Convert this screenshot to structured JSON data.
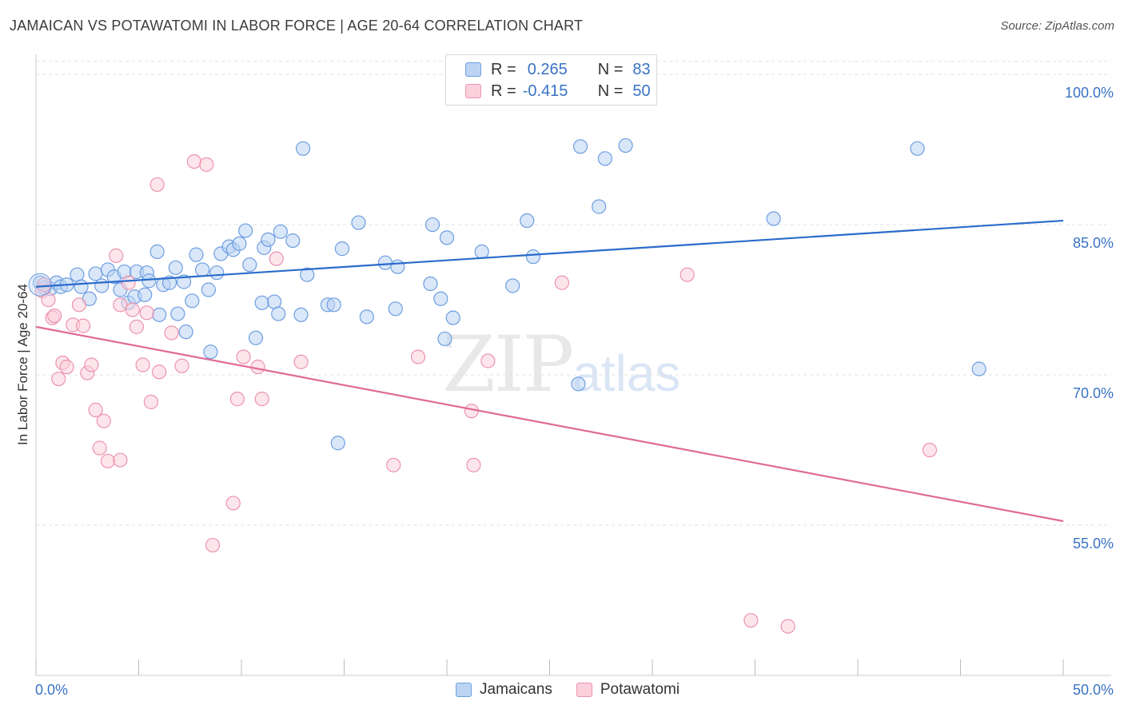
{
  "title": "JAMAICAN VS POTAWATOMI IN LABOR FORCE | AGE 20-64 CORRELATION CHART",
  "source": "Source: ZipAtlas.com",
  "watermark": {
    "zip": "ZIP",
    "atlas": "atlas"
  },
  "legend": {
    "rows": [
      {
        "r_label": "R =",
        "r_value": "0.265",
        "n_label": "N =",
        "n_value": "83"
      },
      {
        "r_label": "R =",
        "r_value": "-0.415",
        "n_label": "N =",
        "n_value": "50"
      }
    ]
  },
  "bottom_legend": {
    "series_a": "Jamaicans",
    "series_b": "Potawatomi"
  },
  "colors": {
    "blue_fill": "#bcd4f4",
    "blue_stroke": "#6d9ee0",
    "blue_line": "#2a6ccb",
    "pink_fill": "#fbd0dc",
    "pink_stroke": "#ec93ae",
    "pink_line": "#e06a96",
    "tick_label": "#3a72c4",
    "grid": "#e2e2e2"
  },
  "chart_data": {
    "type": "scatter",
    "title": "JAMAICAN VS POTAWATOMI IN LABOR FORCE | AGE 20-64 CORRELATION CHART",
    "ylabel": "In Labor Force | Age 20-64",
    "xlim": [
      0,
      50
    ],
    "ylim": [
      40,
      102
    ],
    "x_tick_labels": [
      "0.0%",
      "50.0%"
    ],
    "y_ticks": [
      55,
      70,
      85,
      100
    ],
    "y_tick_labels": [
      "55.0%",
      "70.0%",
      "85.0%",
      "100.0%"
    ],
    "series": [
      {
        "name": "Jamaicans",
        "trend": [
          [
            0,
            78.8
          ],
          [
            50,
            85.4
          ]
        ],
        "points": [
          [
            0.2,
            79.2
          ],
          [
            0.4,
            78.7
          ],
          [
            0.7,
            78.6
          ],
          [
            1.0,
            79.2
          ],
          [
            1.2,
            78.8
          ],
          [
            1.5,
            79.0
          ],
          [
            2.0,
            80.0
          ],
          [
            2.2,
            78.8
          ],
          [
            2.6,
            77.6
          ],
          [
            2.9,
            80.1
          ],
          [
            3.2,
            78.9
          ],
          [
            3.5,
            80.5
          ],
          [
            3.8,
            79.8
          ],
          [
            4.1,
            78.5
          ],
          [
            4.3,
            80.3
          ],
          [
            4.5,
            77.2
          ],
          [
            4.8,
            77.8
          ],
          [
            4.9,
            80.3
          ],
          [
            5.3,
            78.0
          ],
          [
            5.4,
            80.2
          ],
          [
            5.5,
            79.4
          ],
          [
            5.9,
            82.3
          ],
          [
            6.0,
            76.0
          ],
          [
            6.2,
            79.0
          ],
          [
            6.5,
            79.2
          ],
          [
            6.8,
            80.7
          ],
          [
            6.9,
            76.1
          ],
          [
            7.2,
            79.3
          ],
          [
            7.3,
            74.3
          ],
          [
            7.6,
            77.4
          ],
          [
            7.8,
            82.0
          ],
          [
            8.1,
            80.5
          ],
          [
            8.4,
            78.5
          ],
          [
            8.5,
            72.3
          ],
          [
            8.8,
            80.2
          ],
          [
            9.0,
            82.1
          ],
          [
            9.4,
            82.8
          ],
          [
            9.6,
            82.5
          ],
          [
            9.9,
            83.1
          ],
          [
            10.2,
            84.4
          ],
          [
            10.4,
            81.0
          ],
          [
            10.7,
            73.7
          ],
          [
            11.0,
            77.2
          ],
          [
            11.1,
            82.7
          ],
          [
            11.3,
            83.5
          ],
          [
            11.6,
            77.3
          ],
          [
            11.8,
            76.1
          ],
          [
            11.9,
            84.3
          ],
          [
            12.5,
            83.4
          ],
          [
            12.9,
            76.0
          ],
          [
            13.0,
            92.6
          ],
          [
            13.2,
            80.0
          ],
          [
            14.2,
            77.0
          ],
          [
            14.5,
            77.0
          ],
          [
            14.7,
            63.2
          ],
          [
            14.9,
            82.6
          ],
          [
            15.7,
            85.2
          ],
          [
            16.1,
            75.8
          ],
          [
            17.0,
            81.2
          ],
          [
            17.5,
            76.6
          ],
          [
            17.6,
            80.8
          ],
          [
            19.2,
            79.1
          ],
          [
            19.3,
            85.0
          ],
          [
            19.7,
            77.6
          ],
          [
            19.9,
            73.6
          ],
          [
            20.0,
            83.7
          ],
          [
            20.3,
            75.7
          ],
          [
            21.7,
            82.3
          ],
          [
            23.2,
            78.9
          ],
          [
            23.9,
            85.4
          ],
          [
            24.2,
            81.8
          ],
          [
            26.4,
            69.1
          ],
          [
            26.5,
            92.8
          ],
          [
            27.4,
            86.8
          ],
          [
            27.7,
            91.6
          ],
          [
            28.7,
            92.9
          ],
          [
            35.9,
            85.6
          ],
          [
            42.9,
            92.6
          ],
          [
            45.9,
            70.6
          ]
        ]
      },
      {
        "name": "Potawatomi",
        "trend": [
          [
            0,
            74.8
          ],
          [
            50,
            55.4
          ]
        ],
        "points": [
          [
            0.3,
            78.4
          ],
          [
            0.4,
            79.0
          ],
          [
            0.6,
            77.5
          ],
          [
            0.8,
            75.7
          ],
          [
            0.9,
            75.9
          ],
          [
            1.1,
            69.6
          ],
          [
            1.3,
            71.2
          ],
          [
            1.5,
            70.8
          ],
          [
            1.8,
            75.0
          ],
          [
            2.1,
            77.0
          ],
          [
            2.3,
            74.9
          ],
          [
            2.5,
            70.2
          ],
          [
            2.7,
            71.0
          ],
          [
            2.9,
            66.5
          ],
          [
            3.1,
            62.7
          ],
          [
            3.3,
            65.4
          ],
          [
            3.5,
            61.4
          ],
          [
            3.9,
            81.9
          ],
          [
            4.1,
            77.0
          ],
          [
            4.1,
            61.5
          ],
          [
            4.5,
            79.2
          ],
          [
            4.7,
            76.5
          ],
          [
            4.9,
            74.8
          ],
          [
            5.2,
            71.0
          ],
          [
            5.4,
            76.2
          ],
          [
            5.6,
            67.3
          ],
          [
            5.9,
            89.0
          ],
          [
            6.0,
            70.3
          ],
          [
            6.6,
            74.2
          ],
          [
            7.1,
            70.9
          ],
          [
            7.7,
            91.3
          ],
          [
            8.3,
            91.0
          ],
          [
            8.6,
            53.0
          ],
          [
            9.6,
            57.2
          ],
          [
            9.8,
            67.6
          ],
          [
            10.1,
            71.8
          ],
          [
            10.8,
            70.8
          ],
          [
            11.0,
            67.6
          ],
          [
            11.7,
            81.6
          ],
          [
            12.9,
            71.3
          ],
          [
            17.4,
            61.0
          ],
          [
            18.6,
            71.8
          ],
          [
            21.2,
            66.4
          ],
          [
            21.3,
            61.0
          ],
          [
            22.0,
            71.4
          ],
          [
            25.6,
            79.2
          ],
          [
            31.7,
            80.0
          ],
          [
            34.8,
            45.5
          ],
          [
            36.6,
            44.9
          ],
          [
            43.5,
            62.5
          ]
        ]
      }
    ]
  }
}
